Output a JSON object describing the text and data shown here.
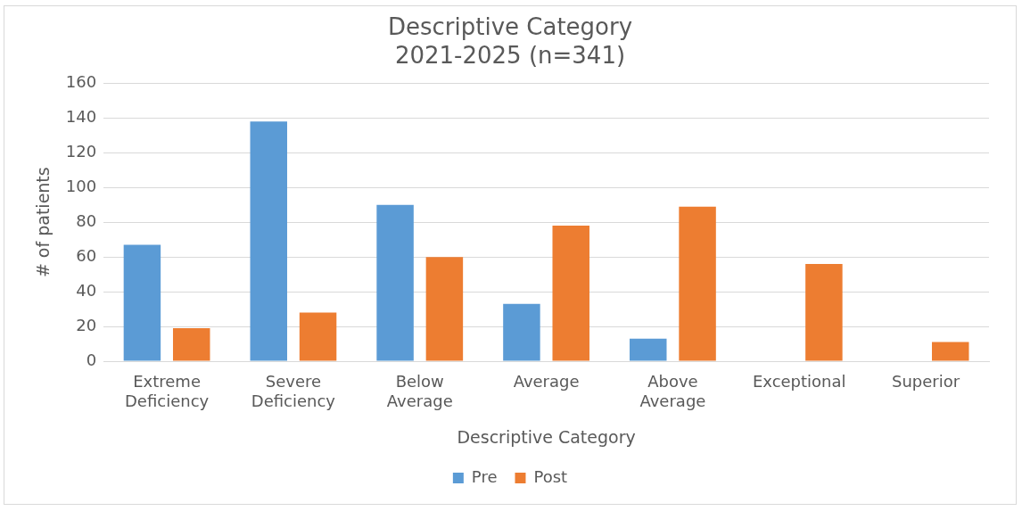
{
  "chart_data": {
    "type": "bar",
    "title": "Descriptive Category",
    "subtitle": "2021-2025 (n=341)",
    "xlabel": "Descriptive Category",
    "ylabel": "# of patients",
    "categories": [
      "Extreme Deficiency",
      "Severe Deficiency",
      "Below Average",
      "Average",
      "Above Average",
      "Exceptional",
      "Superior"
    ],
    "series": [
      {
        "name": "Pre",
        "color": "#5b9bd5",
        "values": [
          67,
          138,
          90,
          33,
          13,
          0,
          0
        ]
      },
      {
        "name": "Post",
        "color": "#ed7d31",
        "values": [
          19,
          28,
          60,
          78,
          89,
          56,
          11
        ]
      }
    ],
    "ylim": [
      0,
      160
    ],
    "yticks": [
      0,
      20,
      40,
      60,
      80,
      100,
      120,
      140,
      160
    ],
    "grid": "y",
    "legend": "bottom"
  }
}
